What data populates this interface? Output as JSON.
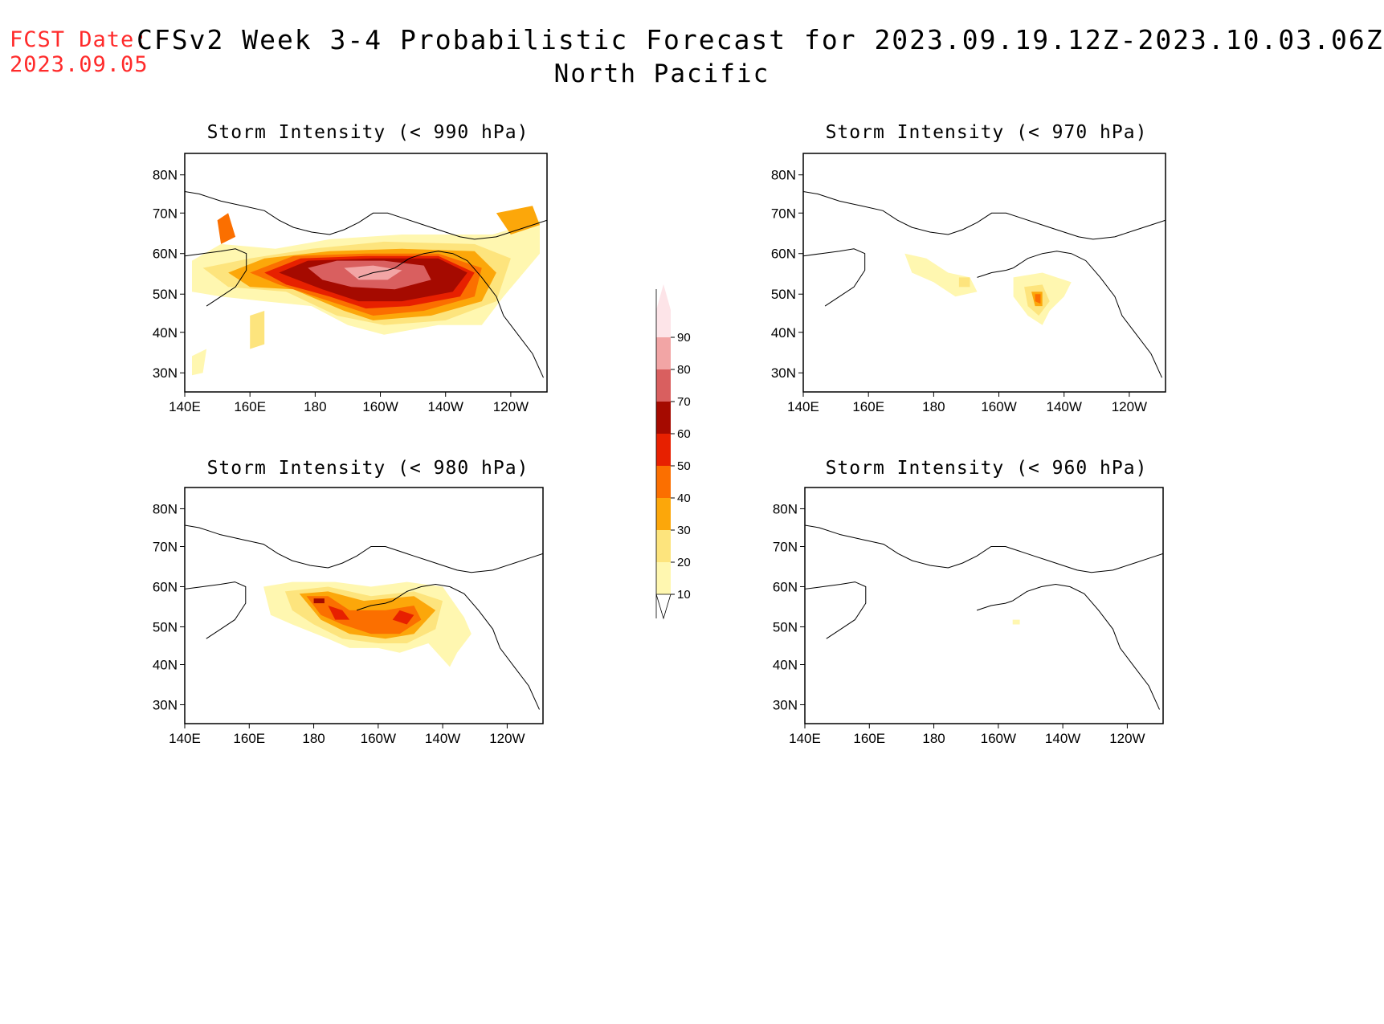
{
  "header": {
    "fcst_label": "FCST Date:",
    "fcst_date": "2023.09.05",
    "title": "CFSv2 Week 3-4 Probabilistic Forecast for 2023.09.19.12Z-2023.10.03.06Z",
    "region": "North Pacific"
  },
  "axes": {
    "lon_ticks": [
      "140E",
      "160E",
      "180",
      "160W",
      "140W",
      "120W"
    ],
    "lat_ticks": [
      "80N",
      "70N",
      "60N",
      "50N",
      "40N",
      "30N"
    ]
  },
  "colorbar": {
    "labels": [
      "10",
      "20",
      "30",
      "40",
      "50",
      "60",
      "70",
      "80",
      "90"
    ],
    "colors": [
      "#fff7b0",
      "#fde47d",
      "#fca70a",
      "#fb6f00",
      "#e72000",
      "#a50a00",
      "#d95f5f",
      "#f2a5a5",
      "#fde4e8"
    ]
  },
  "panels": [
    {
      "id": "p990",
      "title": "Storm Intensity (< 990 hPa)"
    },
    {
      "id": "p970",
      "title": "Storm Intensity (< 970 hPa)"
    },
    {
      "id": "p980",
      "title": "Storm Intensity (< 980 hPa)"
    },
    {
      "id": "p960",
      "title": "Storm Intensity (< 960 hPa)"
    }
  ]
}
